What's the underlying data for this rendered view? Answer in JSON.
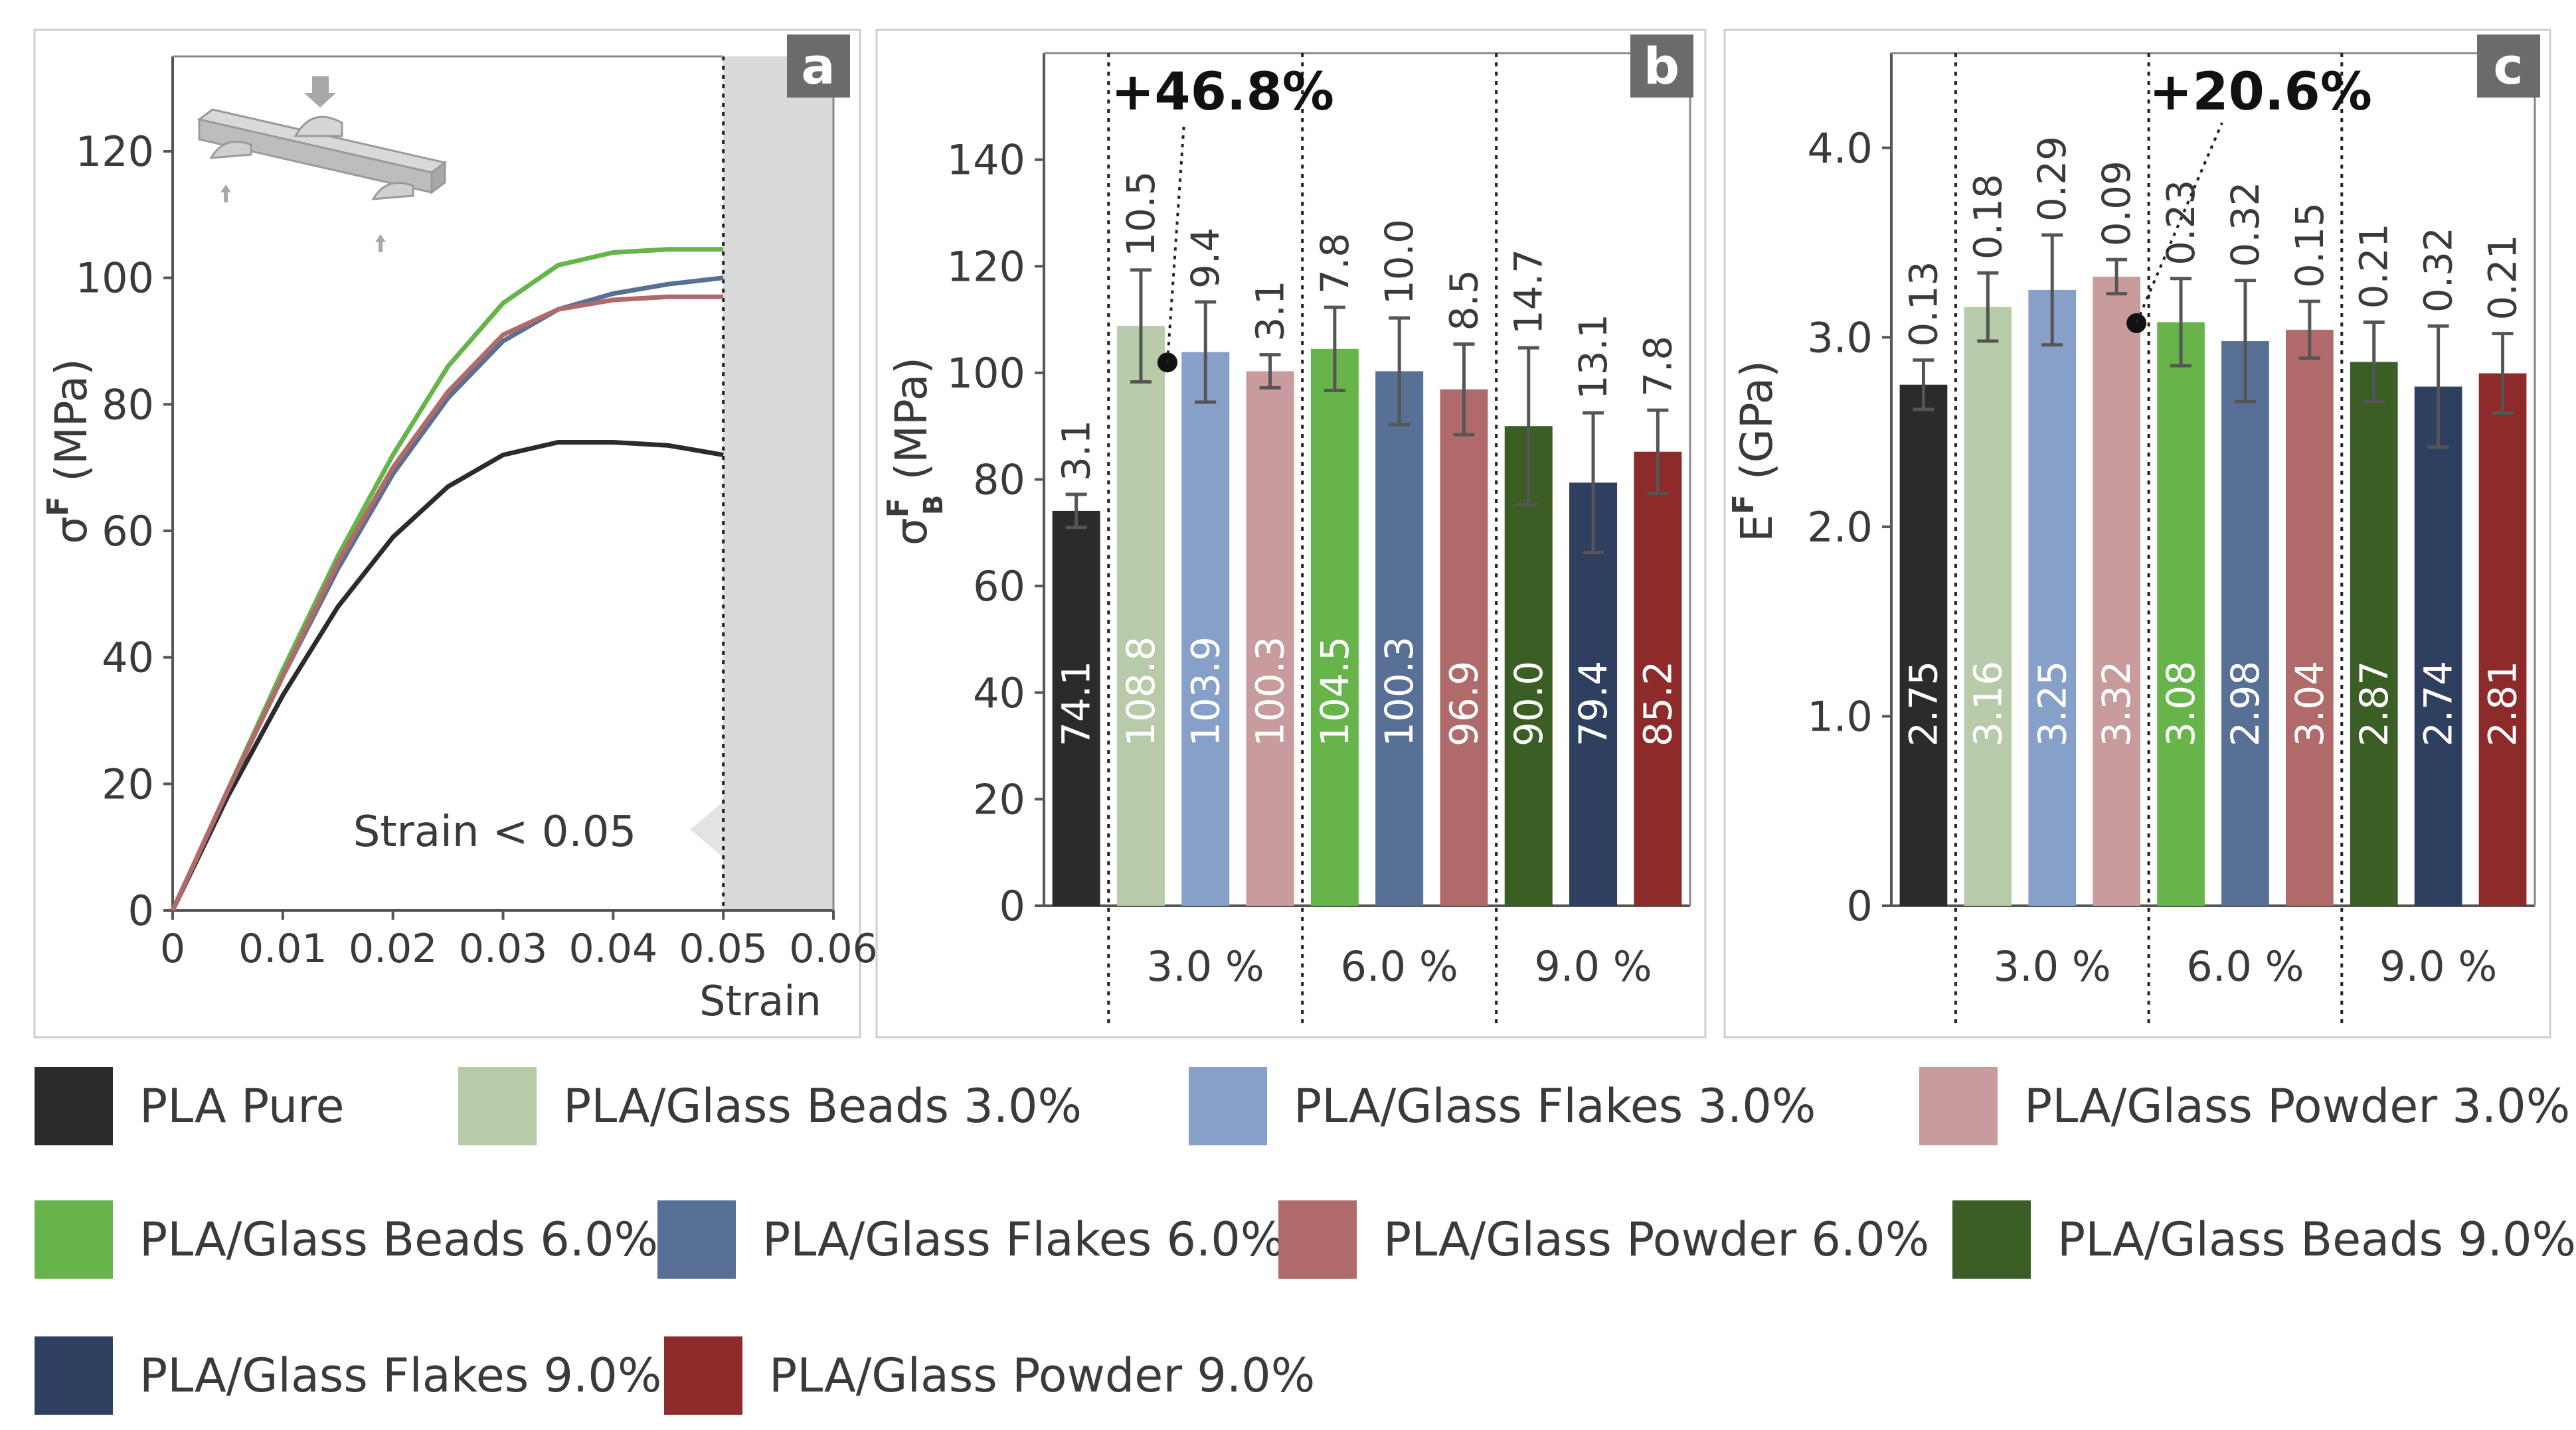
{
  "colors": {
    "pure": "#2b2b2b",
    "beads3": "#b7cba8",
    "flakes3": "#86a0c9",
    "powder3": "#c89c9c",
    "beads6": "#66b44a",
    "flakes6": "#586f96",
    "powder6": "#b06a6a",
    "beads9": "#3a5e23",
    "flakes9": "#2f3f60",
    "powder9": "#8d2a2a",
    "panel_tag_bg": "#6b6b6b",
    "shade": "#d9dbdb"
  },
  "legend": [
    {
      "label": "PLA Pure",
      "color_key": "pure"
    },
    {
      "label": "PLA/Glass Beads 3.0%",
      "color_key": "beads3"
    },
    {
      "label": "PLA/Glass Flakes 3.0%",
      "color_key": "flakes3"
    },
    {
      "label": "PLA/Glass Powder 3.0%",
      "color_key": "powder3"
    },
    {
      "label": "PLA/Glass Beads 6.0%",
      "color_key": "beads6"
    },
    {
      "label": "PLA/Glass Flakes 6.0%",
      "color_key": "flakes6"
    },
    {
      "label": "PLA/Glass Powder 6.0%",
      "color_key": "powder6"
    },
    {
      "label": "PLA/Glass Beads 9.0%",
      "color_key": "beads9"
    },
    {
      "label": "PLA/Glass Flakes 9.0%",
      "color_key": "flakes9"
    },
    {
      "label": "PLA/Glass Powder 9.0%",
      "color_key": "powder9"
    }
  ],
  "chart_data": [
    {
      "panel": "a",
      "type": "line",
      "xlabel": "Strain",
      "ylabel": "σF (MPa)",
      "ylabel_main": "σ",
      "ylabel_sup": "F",
      "ylabel_unit": "(MPa)",
      "xlim": [
        0,
        0.06
      ],
      "ylim": [
        0,
        135
      ],
      "xticks": [
        0,
        0.01,
        0.02,
        0.03,
        0.04,
        0.05,
        0.06
      ],
      "xtick_labels": [
        "0",
        "0.01",
        "0.02",
        "0.03",
        "0.04",
        "0.05",
        "0.06"
      ],
      "yticks": [
        0,
        20,
        40,
        60,
        80,
        100,
        120
      ],
      "ytick_labels": [
        "0",
        "20",
        "40",
        "60",
        "80",
        "100",
        "120"
      ],
      "shaded_region_x": [
        0.05,
        0.06
      ],
      "annotation": "Strain < 0.05",
      "series": [
        {
          "name": "PLA Pure",
          "color_key": "pure",
          "x": [
            0,
            0.005,
            0.01,
            0.015,
            0.02,
            0.025,
            0.03,
            0.035,
            0.04,
            0.045,
            0.05
          ],
          "y": [
            0,
            18,
            34,
            48,
            59,
            67,
            72,
            74,
            74,
            73.5,
            72
          ]
        },
        {
          "name": "PLA/Glass Beads 6.0%",
          "color_key": "beads6",
          "x": [
            0,
            0.005,
            0.01,
            0.015,
            0.02,
            0.025,
            0.03,
            0.035,
            0.04,
            0.045,
            0.05
          ],
          "y": [
            0,
            19,
            38,
            56,
            72,
            86,
            96,
            102,
            104,
            104.5,
            104.5
          ]
        },
        {
          "name": "PLA/Glass Flakes 6.0%",
          "color_key": "flakes6",
          "x": [
            0,
            0.005,
            0.01,
            0.015,
            0.02,
            0.025,
            0.03,
            0.035,
            0.04,
            0.045,
            0.05
          ],
          "y": [
            0,
            19,
            37,
            54,
            69,
            81,
            90,
            95,
            97.5,
            99,
            100
          ]
        },
        {
          "name": "PLA/Glass Powder 6.0%",
          "color_key": "powder6",
          "x": [
            0,
            0.005,
            0.01,
            0.015,
            0.02,
            0.025,
            0.03,
            0.035,
            0.04,
            0.045,
            0.05
          ],
          "y": [
            0,
            19,
            37,
            55,
            70,
            82,
            91,
            95,
            96.5,
            97,
            97
          ]
        }
      ]
    },
    {
      "panel": "b",
      "type": "bar",
      "ylabel": "σFB (MPa)",
      "ylabel_main": "σ",
      "ylabel_sup": "F",
      "ylabel_sub": "B",
      "ylabel_unit": "(MPa)",
      "ylim": [
        0,
        160
      ],
      "yticks": [
        0,
        20,
        40,
        60,
        80,
        100,
        120,
        140
      ],
      "ytick_labels": [
        "0",
        "20",
        "40",
        "60",
        "80",
        "100",
        "120",
        "140"
      ],
      "groups": [
        "3.0 %",
        "6.0 %",
        "9.0 %"
      ],
      "bars": [
        {
          "name": "PLA Pure",
          "color_key": "pure",
          "value": 74.1,
          "error": 3.1,
          "value_label": "74.1",
          "error_label": "3.1"
        },
        {
          "name": "PLA/Glass Beads 3.0%",
          "color_key": "beads3",
          "value": 108.8,
          "error": 10.5,
          "value_label": "108.8",
          "error_label": "10.5"
        },
        {
          "name": "PLA/Glass Flakes 3.0%",
          "color_key": "flakes3",
          "value": 103.9,
          "error": 9.4,
          "value_label": "103.9",
          "error_label": "9.4"
        },
        {
          "name": "PLA/Glass Powder 3.0%",
          "color_key": "powder3",
          "value": 100.3,
          "error": 3.1,
          "value_label": "100.3",
          "error_label": "3.1"
        },
        {
          "name": "PLA/Glass Beads 6.0%",
          "color_key": "beads6",
          "value": 104.5,
          "error": 7.8,
          "value_label": "104.5",
          "error_label": "7.8"
        },
        {
          "name": "PLA/Glass Flakes 6.0%",
          "color_key": "flakes6",
          "value": 100.3,
          "error": 10.0,
          "value_label": "100.3",
          "error_label": "10.0"
        },
        {
          "name": "PLA/Glass Powder 6.0%",
          "color_key": "powder6",
          "value": 96.9,
          "error": 8.5,
          "value_label": "96.9",
          "error_label": "8.5"
        },
        {
          "name": "PLA/Glass Beads 9.0%",
          "color_key": "beads9",
          "value": 90.0,
          "error": 14.7,
          "value_label": "90.0",
          "error_label": "14.7"
        },
        {
          "name": "PLA/Glass Flakes 9.0%",
          "color_key": "flakes9",
          "value": 79.4,
          "error": 13.1,
          "value_label": "79.4",
          "error_label": "13.1"
        },
        {
          "name": "PLA/Glass Powder 9.0%",
          "color_key": "powder9",
          "value": 85.2,
          "error": 7.8,
          "value_label": "85.2",
          "error_label": "7.8"
        }
      ],
      "annotation": "+46.8%",
      "annotation_bar_index": 1
    },
    {
      "panel": "c",
      "type": "bar",
      "ylabel": "EF (GPa)",
      "ylabel_main": "E",
      "ylabel_sup": "F",
      "ylabel_unit": "(GPa)",
      "ylim": [
        0,
        4.5
      ],
      "yticks": [
        0,
        1.0,
        2.0,
        3.0,
        4.0
      ],
      "ytick_labels": [
        "0",
        "1.0",
        "2.0",
        "3.0",
        "4.0"
      ],
      "groups": [
        "3.0 %",
        "6.0 %",
        "9.0 %"
      ],
      "bars": [
        {
          "name": "PLA Pure",
          "color_key": "pure",
          "value": 2.75,
          "error": 0.13,
          "value_label": "2.75",
          "error_label": "0.13"
        },
        {
          "name": "PLA/Glass Beads 3.0%",
          "color_key": "beads3",
          "value": 3.16,
          "error": 0.18,
          "value_label": "3.16",
          "error_label": "0.18"
        },
        {
          "name": "PLA/Glass Flakes 3.0%",
          "color_key": "flakes3",
          "value": 3.25,
          "error": 0.29,
          "value_label": "3.25",
          "error_label": "0.29"
        },
        {
          "name": "PLA/Glass Powder 3.0%",
          "color_key": "powder3",
          "value": 3.32,
          "error": 0.09,
          "value_label": "3.32",
          "error_label": "0.09"
        },
        {
          "name": "PLA/Glass Beads 6.0%",
          "color_key": "beads6",
          "value": 3.08,
          "error": 0.23,
          "value_label": "3.08",
          "error_label": "0.23"
        },
        {
          "name": "PLA/Glass Flakes 6.0%",
          "color_key": "flakes6",
          "value": 2.98,
          "error": 0.32,
          "value_label": "2.98",
          "error_label": "0.32"
        },
        {
          "name": "PLA/Glass Powder 6.0%",
          "color_key": "powder6",
          "value": 3.04,
          "error": 0.15,
          "value_label": "3.04",
          "error_label": "0.15"
        },
        {
          "name": "PLA/Glass Beads 9.0%",
          "color_key": "beads9",
          "value": 2.87,
          "error": 0.21,
          "value_label": "2.87",
          "error_label": "0.21"
        },
        {
          "name": "PLA/Glass Flakes 9.0%",
          "color_key": "flakes9",
          "value": 2.74,
          "error": 0.32,
          "value_label": "2.74",
          "error_label": "0.32"
        },
        {
          "name": "PLA/Glass Powder 9.0%",
          "color_key": "powder9",
          "value": 2.81,
          "error": 0.21,
          "value_label": "2.81",
          "error_label": "0.21"
        }
      ],
      "annotation": "+20.6%",
      "annotation_bar_index": 3
    }
  ]
}
